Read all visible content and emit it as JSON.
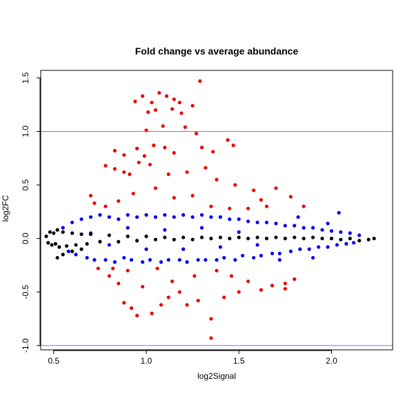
{
  "chart_data": {
    "type": "scatter",
    "title": "Fold change vs average abundance",
    "xlabel": "log2Signal",
    "ylabel": "log2FC",
    "xlim": [
      0.43,
      2.33
    ],
    "ylim": [
      -1.04,
      1.57
    ],
    "xticks": [
      0.5,
      1.0,
      1.5,
      2.0
    ],
    "xtick_labels": [
      "0.5",
      "1.0",
      "1.5",
      "2.0"
    ],
    "yticks": [
      -1.0,
      -0.5,
      0.0,
      0.5,
      1.0,
      1.5
    ],
    "ytick_labels": [
      "-1.0",
      "-0.5",
      "0.0",
      "0.5",
      "1.0",
      "1.5"
    ],
    "hlines": [
      1.0,
      -1.0
    ],
    "hline_color": "#7070ff",
    "grid": false,
    "legend": "none",
    "series": [
      {
        "color": "#0000ee",
        "description": "dense band |log2FC| up to ~0.25",
        "points": [
          [
            0.55,
            0.1
          ],
          [
            0.58,
            -0.12
          ],
          [
            0.6,
            0.15
          ],
          [
            0.62,
            -0.15
          ],
          [
            0.65,
            0.18
          ],
          [
            0.68,
            -0.18
          ],
          [
            0.7,
            0.2
          ],
          [
            0.72,
            -0.2
          ],
          [
            0.75,
            0.22
          ],
          [
            0.78,
            -0.2
          ],
          [
            0.8,
            0.2
          ],
          [
            0.83,
            -0.22
          ],
          [
            0.85,
            0.18
          ],
          [
            0.88,
            -0.18
          ],
          [
            0.9,
            0.22
          ],
          [
            0.92,
            -0.2
          ],
          [
            0.95,
            0.2
          ],
          [
            0.98,
            -0.22
          ],
          [
            1.0,
            0.22
          ],
          [
            1.02,
            -0.2
          ],
          [
            1.05,
            0.2
          ],
          [
            1.08,
            -0.22
          ],
          [
            1.1,
            0.22
          ],
          [
            1.12,
            -0.2
          ],
          [
            1.15,
            0.2
          ],
          [
            1.18,
            -0.2
          ],
          [
            1.2,
            0.22
          ],
          [
            1.22,
            -0.22
          ],
          [
            1.25,
            0.2
          ],
          [
            1.28,
            -0.2
          ],
          [
            1.3,
            0.22
          ],
          [
            1.32,
            -0.2
          ],
          [
            1.35,
            0.2
          ],
          [
            1.38,
            -0.2
          ],
          [
            1.4,
            0.2
          ],
          [
            1.42,
            -0.18
          ],
          [
            1.45,
            0.18
          ],
          [
            1.48,
            -0.2
          ],
          [
            1.5,
            0.18
          ],
          [
            1.52,
            -0.16
          ],
          [
            1.55,
            0.16
          ],
          [
            1.58,
            -0.18
          ],
          [
            1.6,
            0.15
          ],
          [
            1.62,
            -0.16
          ],
          [
            1.65,
            0.15
          ],
          [
            1.68,
            -0.14
          ],
          [
            1.7,
            0.14
          ],
          [
            1.72,
            -0.14
          ],
          [
            1.75,
            0.12
          ],
          [
            1.78,
            -0.12
          ],
          [
            1.8,
            0.12
          ],
          [
            1.83,
            -0.1
          ],
          [
            1.85,
            0.1
          ],
          [
            1.88,
            -0.1
          ],
          [
            1.9,
            0.1
          ],
          [
            1.93,
            -0.08
          ],
          [
            1.95,
            0.08
          ],
          [
            1.98,
            -0.08
          ],
          [
            2.0,
            0.07
          ],
          [
            2.03,
            -0.06
          ],
          [
            2.05,
            0.06
          ],
          [
            2.08,
            -0.05
          ],
          [
            2.1,
            0.05
          ],
          [
            2.12,
            -0.04
          ],
          [
            2.15,
            0.03
          ],
          [
            2.04,
            0.24
          ],
          [
            1.98,
            0.14
          ],
          [
            1.9,
            -0.18
          ],
          [
            1.82,
            0.2
          ],
          [
            1.72,
            -0.2
          ],
          [
            0.9,
            0.1
          ],
          [
            1.0,
            -0.1
          ],
          [
            1.1,
            0.08
          ],
          [
            1.2,
            -0.1
          ],
          [
            1.3,
            0.1
          ],
          [
            1.4,
            -0.08
          ],
          [
            1.5,
            0.06
          ],
          [
            1.6,
            -0.06
          ],
          [
            0.7,
            0.05
          ],
          [
            0.8,
            -0.06
          ]
        ]
      },
      {
        "color": "#ee0000",
        "description": "outlier points beyond ~0.25",
        "points": [
          [
            1.29,
            1.47
          ],
          [
            1.07,
            1.36
          ],
          [
            1.11,
            1.33
          ],
          [
            1.15,
            1.3
          ],
          [
            0.98,
            1.33
          ],
          [
            1.03,
            1.27
          ],
          [
            1.25,
            1.24
          ],
          [
            1.18,
            1.27
          ],
          [
            0.94,
            1.28
          ],
          [
            1.05,
            1.2
          ],
          [
            1.14,
            1.21
          ],
          [
            1.19,
            1.17
          ],
          [
            1.01,
            1.18
          ],
          [
            1.09,
            1.05
          ],
          [
            1.0,
            1.01
          ],
          [
            1.21,
            1.04
          ],
          [
            1.27,
            0.98
          ],
          [
            1.3,
            0.85
          ],
          [
            1.44,
            0.92
          ],
          [
            1.47,
            0.87
          ],
          [
            1.36,
            0.81
          ],
          [
            1.15,
            0.8
          ],
          [
            1.04,
            0.87
          ],
          [
            1.1,
            0.85
          ],
          [
            0.95,
            0.84
          ],
          [
            0.83,
            0.82
          ],
          [
            0.88,
            0.78
          ],
          [
            0.99,
            0.77
          ],
          [
            0.78,
            0.68
          ],
          [
            0.83,
            0.65
          ],
          [
            0.96,
            0.71
          ],
          [
            1.02,
            0.69
          ],
          [
            0.91,
            0.6
          ],
          [
            0.88,
            0.62
          ],
          [
            1.12,
            0.6
          ],
          [
            1.22,
            0.62
          ],
          [
            1.32,
            0.66
          ],
          [
            1.38,
            0.55
          ],
          [
            1.48,
            0.5
          ],
          [
            1.58,
            0.45
          ],
          [
            1.62,
            0.36
          ],
          [
            1.7,
            0.47
          ],
          [
            1.78,
            0.39
          ],
          [
            1.85,
            0.3
          ],
          [
            0.7,
            0.4
          ],
          [
            0.72,
            0.33
          ],
          [
            0.78,
            0.3
          ],
          [
            0.85,
            0.35
          ],
          [
            0.93,
            0.42
          ],
          [
            1.05,
            0.47
          ],
          [
            1.15,
            0.38
          ],
          [
            1.25,
            0.4
          ],
          [
            1.35,
            0.3
          ],
          [
            1.45,
            0.28
          ],
          [
            1.55,
            0.28
          ],
          [
            1.65,
            0.3
          ],
          [
            0.74,
            -0.28
          ],
          [
            0.8,
            -0.35
          ],
          [
            0.85,
            -0.42
          ],
          [
            0.88,
            -0.6
          ],
          [
            0.92,
            -0.65
          ],
          [
            0.95,
            -0.72
          ],
          [
            1.03,
            -0.7
          ],
          [
            1.08,
            -0.62
          ],
          [
            1.12,
            -0.55
          ],
          [
            1.18,
            -0.5
          ],
          [
            1.22,
            -0.62
          ],
          [
            1.28,
            -0.58
          ],
          [
            1.35,
            -0.75
          ],
          [
            1.35,
            -0.93
          ],
          [
            1.42,
            -0.55
          ],
          [
            1.5,
            -0.5
          ],
          [
            1.55,
            -0.4
          ],
          [
            1.62,
            -0.48
          ],
          [
            1.68,
            -0.44
          ],
          [
            1.75,
            -0.42
          ],
          [
            1.8,
            -0.38
          ],
          [
            1.75,
            -0.47
          ],
          [
            0.98,
            -0.45
          ],
          [
            1.14,
            -0.4
          ],
          [
            1.26,
            -0.35
          ],
          [
            1.46,
            -0.35
          ],
          [
            1.38,
            -0.3
          ],
          [
            0.9,
            -0.3
          ],
          [
            0.82,
            -0.28
          ],
          [
            1.06,
            -0.28
          ]
        ]
      },
      {
        "color": "#000000",
        "description": "central band near zero",
        "points": [
          [
            0.46,
            0.02
          ],
          [
            0.47,
            -0.04
          ],
          [
            0.48,
            0.06
          ],
          [
            0.49,
            -0.06
          ],
          [
            0.5,
            0.05
          ],
          [
            0.51,
            -0.05
          ],
          [
            0.52,
            0.08
          ],
          [
            0.53,
            -0.08
          ],
          [
            0.55,
            0.06
          ],
          [
            0.57,
            -0.07
          ],
          [
            0.6,
            0.05
          ],
          [
            0.62,
            -0.06
          ],
          [
            0.65,
            0.04
          ],
          [
            0.68,
            -0.05
          ],
          [
            0.7,
            0.04
          ],
          [
            0.75,
            -0.03
          ],
          [
            0.8,
            0.03
          ],
          [
            0.85,
            -0.03
          ],
          [
            0.9,
            0.02
          ],
          [
            0.95,
            -0.02
          ],
          [
            1.0,
            0.02
          ],
          [
            1.05,
            -0.01
          ],
          [
            1.1,
            0.01
          ],
          [
            1.15,
            -0.01
          ],
          [
            1.2,
            0.01
          ],
          [
            1.25,
            -0.01
          ],
          [
            1.3,
            0.01
          ],
          [
            1.35,
            0.0
          ],
          [
            1.4,
            0.01
          ],
          [
            1.45,
            0.0
          ],
          [
            1.5,
            0.01
          ],
          [
            1.55,
            0.0
          ],
          [
            1.6,
            0.01
          ],
          [
            1.65,
            0.0
          ],
          [
            1.7,
            0.01
          ],
          [
            1.75,
            0.0
          ],
          [
            1.8,
            0.01
          ],
          [
            1.85,
            0.0
          ],
          [
            1.9,
            0.01
          ],
          [
            1.95,
            0.0
          ],
          [
            2.0,
            0.0
          ],
          [
            2.05,
            -0.01
          ],
          [
            2.1,
            0.0
          ],
          [
            2.15,
            -0.02
          ],
          [
            2.2,
            -0.01
          ],
          [
            2.23,
            0.0
          ],
          [
            0.52,
            -0.18
          ],
          [
            0.55,
            -0.15
          ],
          [
            0.6,
            -0.12
          ],
          [
            0.65,
            -0.1
          ]
        ]
      }
    ]
  }
}
